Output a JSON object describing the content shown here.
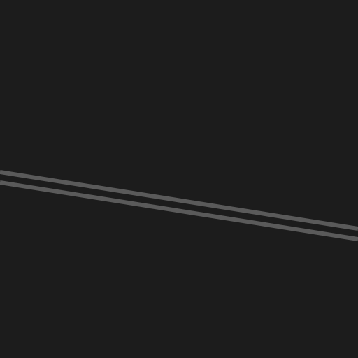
{
  "scene": {
    "background_color": "#1c1c1c",
    "line_color": "#5a5a5a",
    "elements": [
      {
        "name": "diagonal-line-upper"
      },
      {
        "name": "diagonal-line-lower"
      }
    ]
  }
}
